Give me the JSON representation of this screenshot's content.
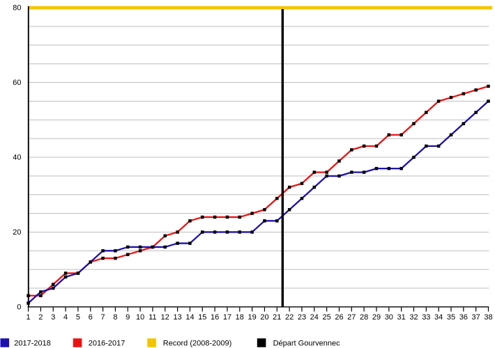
{
  "chart_data": {
    "type": "line",
    "title": "",
    "xlabel": "",
    "ylabel": "",
    "x": [
      1,
      2,
      3,
      4,
      5,
      6,
      7,
      8,
      9,
      10,
      11,
      12,
      13,
      14,
      15,
      16,
      17,
      18,
      19,
      20,
      21,
      22,
      23,
      24,
      25,
      26,
      27,
      28,
      29,
      30,
      31,
      32,
      33,
      34,
      35,
      36,
      37,
      38
    ],
    "xlim": [
      1,
      38
    ],
    "ylim": [
      0,
      80
    ],
    "yticks": [
      0,
      20,
      40,
      60,
      80
    ],
    "grid_step": 5,
    "grid_on": true,
    "series": [
      {
        "name": "2017-2018",
        "color": "#1c10ae",
        "marker": "square",
        "marker_color": "#000000",
        "values": [
          1,
          4,
          5,
          8,
          9,
          12,
          15,
          15,
          16,
          16,
          16,
          16,
          17,
          17,
          20,
          20,
          20,
          20,
          20,
          23,
          23,
          26,
          29,
          32,
          35,
          35,
          36,
          36,
          37,
          37,
          37,
          40,
          43,
          43,
          46,
          49,
          52,
          55
        ]
      },
      {
        "name": "2016-2017",
        "color": "#ee1111",
        "marker": "square",
        "marker_color": "#000000",
        "values": [
          3,
          3,
          6,
          9,
          9,
          12,
          13,
          13,
          14,
          15,
          16,
          19,
          20,
          23,
          24,
          24,
          24,
          24,
          25,
          26,
          29,
          32,
          33,
          36,
          36,
          39,
          42,
          43,
          43,
          46,
          46,
          49,
          52,
          55,
          56,
          57,
          58,
          59
        ]
      }
    ],
    "reference_lines": [
      {
        "name": "Record (2008-2009)",
        "orientation": "horizontal",
        "value": 80,
        "color": "#f5c400"
      },
      {
        "name": "Départ Gourvennec",
        "orientation": "vertical",
        "value": 21.45,
        "color": "#000000"
      }
    ],
    "legend_position": "bottom",
    "legend": [
      {
        "label": "2017-2018",
        "color": "#1c10ae"
      },
      {
        "label": "2016-2017",
        "color": "#ee1111"
      },
      {
        "label": "Record (2008-2009)",
        "color": "#f5c400"
      },
      {
        "label": "Départ Gourvennec",
        "color": "#000000"
      }
    ],
    "colors": {
      "background": "#ffffff",
      "grid": "#bdbdbd",
      "axis": "#000000",
      "tick_label": "#000000"
    }
  }
}
